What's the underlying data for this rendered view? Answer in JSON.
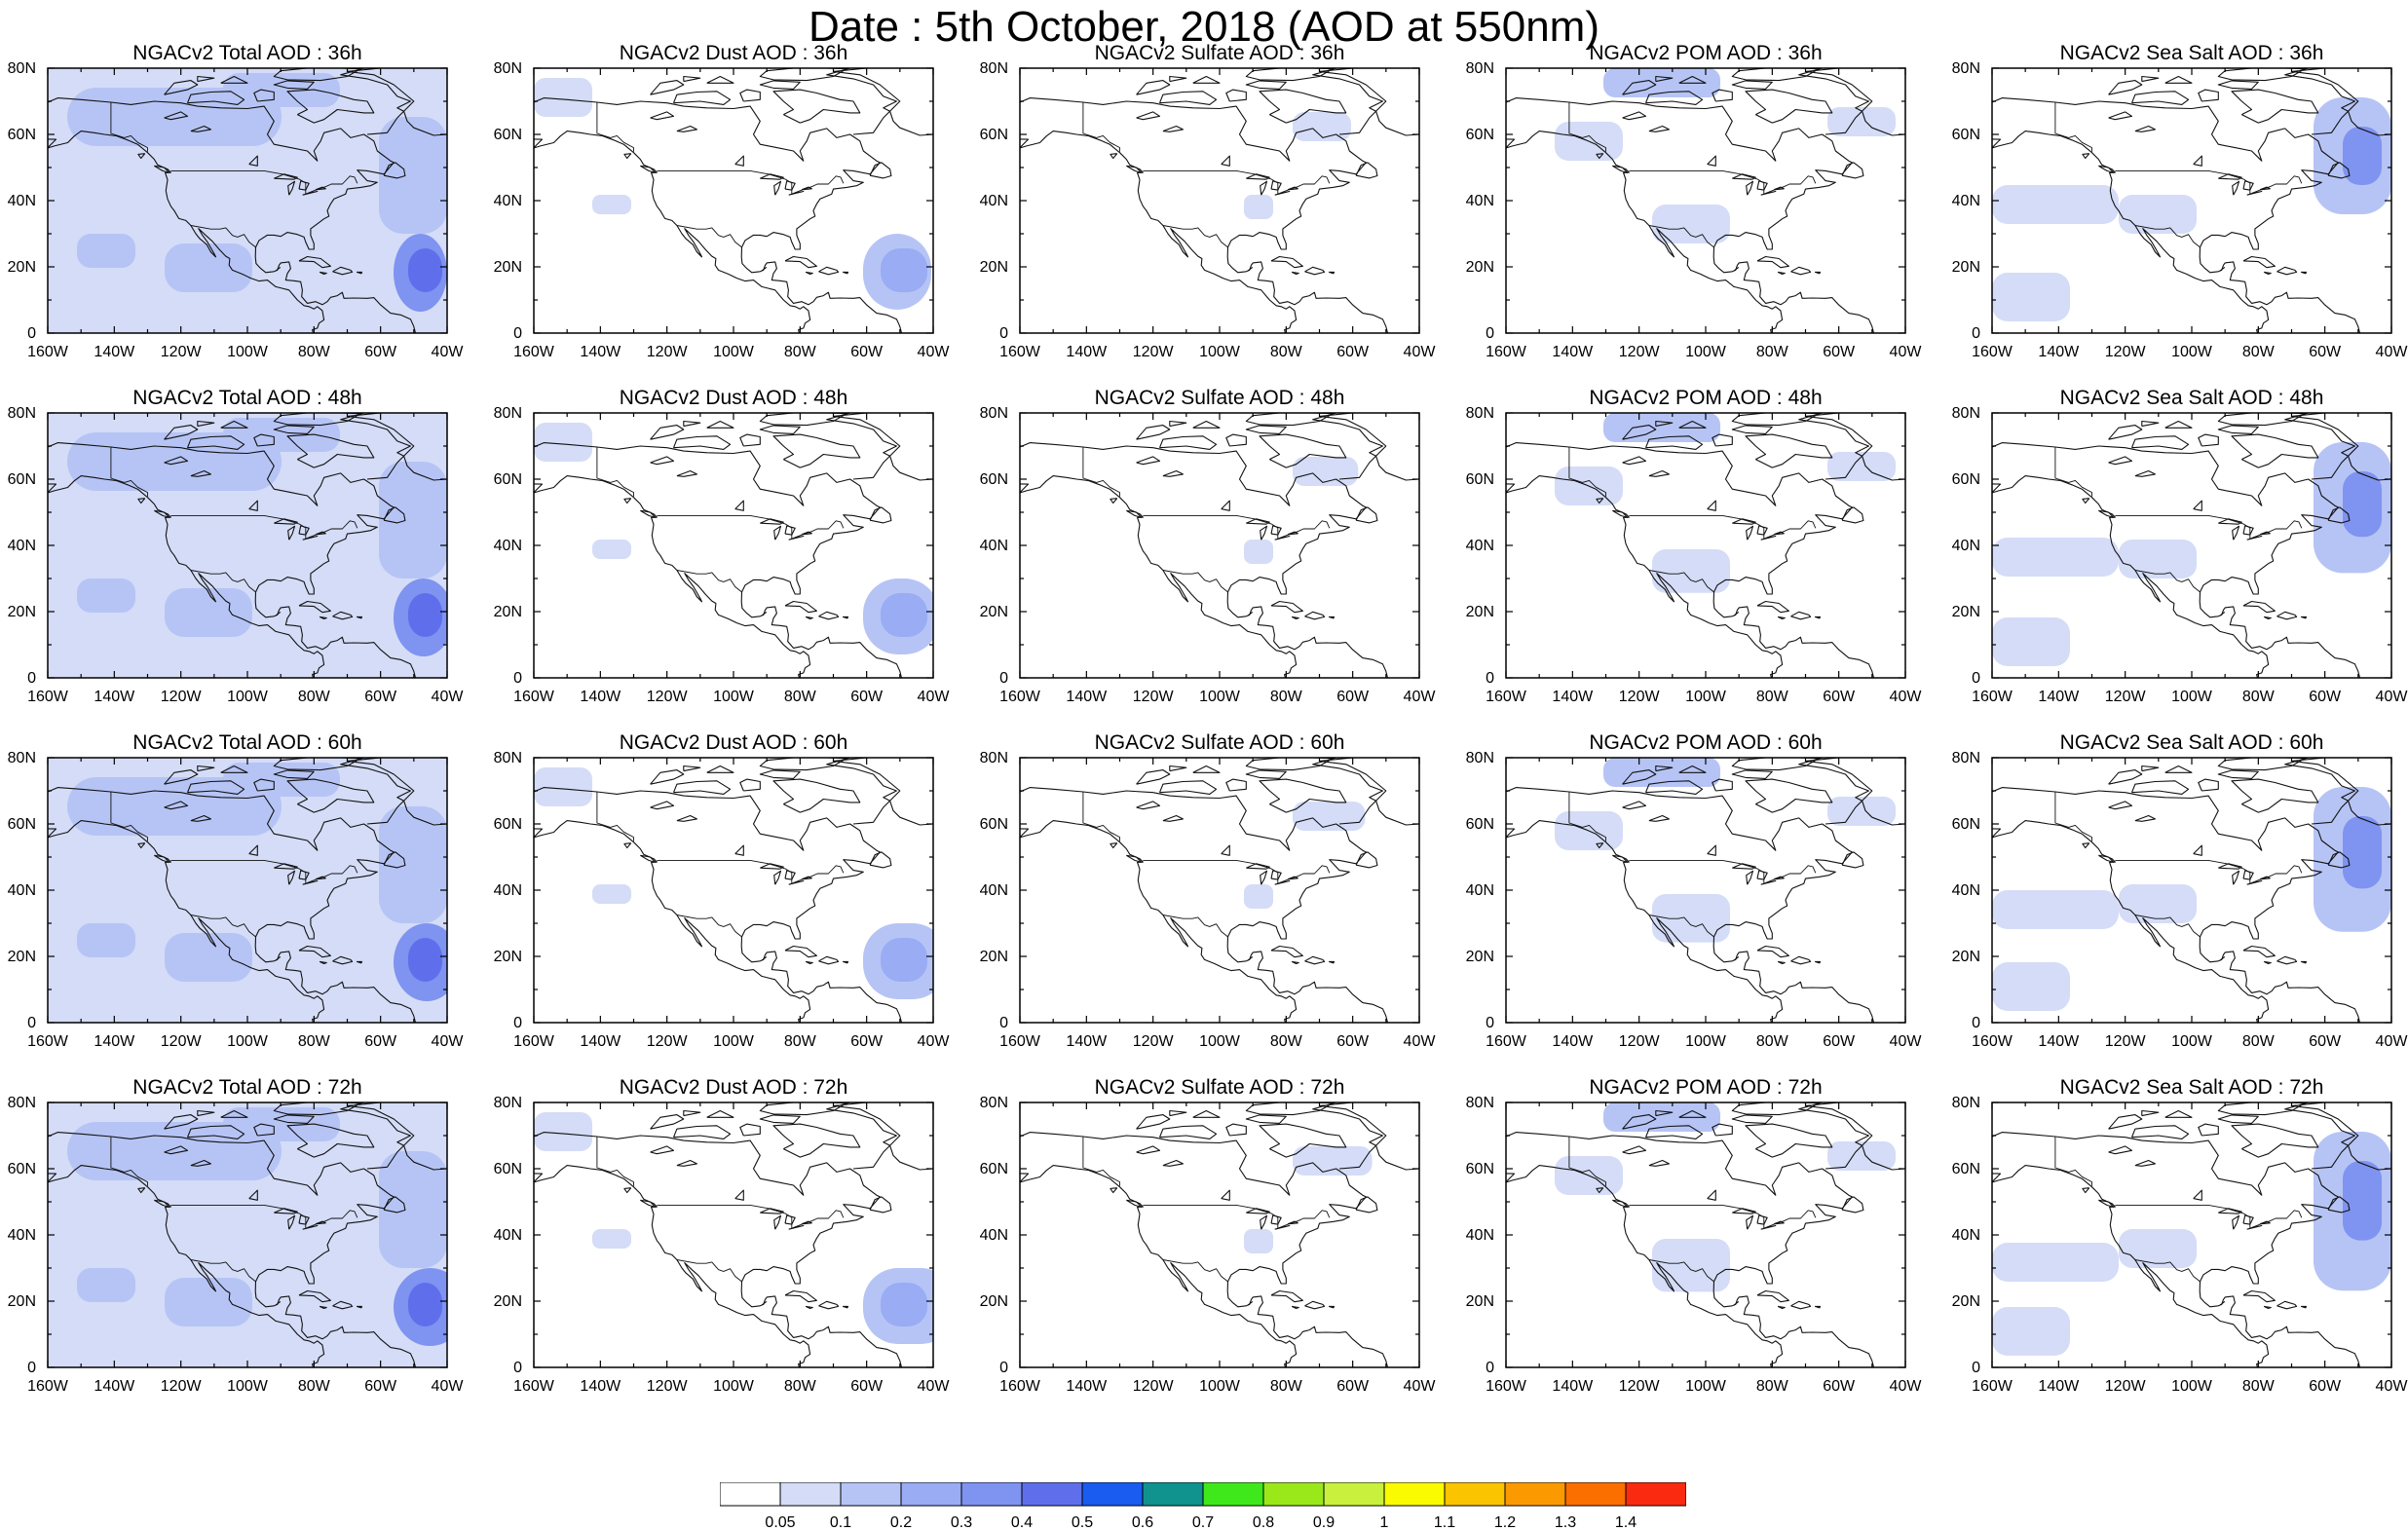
{
  "figure_title": "Date : 5th October, 2018 (AOD at 550nm)",
  "map": {
    "region": "North America",
    "lon_range": [
      -160,
      -40
    ],
    "lat_range": [
      0,
      80
    ],
    "lon_tick_labels": [
      "160W",
      "140W",
      "120W",
      "100W",
      "80W",
      "60W",
      "40W"
    ],
    "lat_tick_labels": [
      "0",
      "20N",
      "40N",
      "60N",
      "80N"
    ]
  },
  "panels": [
    {
      "title": "NGACv2 Total AOD : 36h",
      "species": "total",
      "forecast_hour": "36h"
    },
    {
      "title": "NGACv2 Dust AOD : 36h",
      "species": "dust",
      "forecast_hour": "36h"
    },
    {
      "title": "NGACv2 Sulfate AOD : 36h",
      "species": "sulfate",
      "forecast_hour": "36h"
    },
    {
      "title": "NGACv2 POM AOD : 36h",
      "species": "pom",
      "forecast_hour": "36h"
    },
    {
      "title": "NGACv2 Sea Salt AOD : 36h",
      "species": "seasalt",
      "forecast_hour": "36h"
    },
    {
      "title": "NGACv2 Total AOD : 48h",
      "species": "total",
      "forecast_hour": "48h"
    },
    {
      "title": "NGACv2 Dust AOD : 48h",
      "species": "dust",
      "forecast_hour": "48h"
    },
    {
      "title": "NGACv2 Sulfate AOD : 48h",
      "species": "sulfate",
      "forecast_hour": "48h"
    },
    {
      "title": "NGACv2 POM AOD : 48h",
      "species": "pom",
      "forecast_hour": "48h"
    },
    {
      "title": "NGACv2 Sea Salt AOD : 48h",
      "species": "seasalt",
      "forecast_hour": "48h"
    },
    {
      "title": "NGACv2 Total AOD : 60h",
      "species": "total",
      "forecast_hour": "60h"
    },
    {
      "title": "NGACv2 Dust AOD : 60h",
      "species": "dust",
      "forecast_hour": "60h"
    },
    {
      "title": "NGACv2 Sulfate AOD : 60h",
      "species": "sulfate",
      "forecast_hour": "60h"
    },
    {
      "title": "NGACv2 POM AOD : 60h",
      "species": "pom",
      "forecast_hour": "60h"
    },
    {
      "title": "NGACv2 Sea Salt AOD : 60h",
      "species": "seasalt",
      "forecast_hour": "60h"
    },
    {
      "title": "NGACv2 Total AOD : 72h",
      "species": "total",
      "forecast_hour": "72h"
    },
    {
      "title": "NGACv2 Dust AOD : 72h",
      "species": "dust",
      "forecast_hour": "72h"
    },
    {
      "title": "NGACv2 Sulfate AOD : 72h",
      "species": "sulfate",
      "forecast_hour": "72h"
    },
    {
      "title": "NGACv2 POM AOD : 72h",
      "species": "pom",
      "forecast_hour": "72h"
    },
    {
      "title": "NGACv2 Sea Salt  AOD : 72h",
      "species": "seasalt",
      "forecast_hour": "72h"
    }
  ],
  "legend": {
    "levels": [
      "0.05",
      "0.1",
      "0.2",
      "0.3",
      "0.4",
      "0.5",
      "0.6",
      "0.7",
      "0.8",
      "0.9",
      "1",
      "1.1",
      "1.2",
      "1.3",
      "1.4"
    ],
    "colors": [
      "#ffffff",
      "#d4dcf7",
      "#b6c4f5",
      "#99acf4",
      "#7f93f0",
      "#5f6fec",
      "#1a5cf0",
      "#10928f",
      "#3fe81a",
      "#9be81a",
      "#c8f03c",
      "#fafa00",
      "#fbc400",
      "#fb9a00",
      "#fb6e00",
      "#fa2a10"
    ]
  }
}
